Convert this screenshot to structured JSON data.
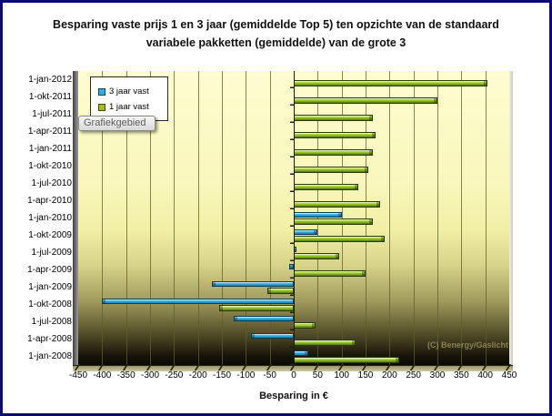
{
  "title": "Besparing vaste prijs 1 en 3 jaar (gemiddelde Top 5) ten opzichte van de standaard variabele pakketten (gemiddelde) van de grote 3",
  "tooltip": {
    "label": "Grafiekgebied"
  },
  "copyright": "(C) Benergy/Gaslicht",
  "colors": {
    "series_blue": "#2EB0E5",
    "series_green": "#9FCA27",
    "window_border": "#0C0C70",
    "plot_top": "#FDFDD0",
    "plot_bottom": "#0B0903"
  },
  "chart_data": {
    "type": "bar",
    "orientation": "horizontal",
    "title": "Besparing vaste prijs 1 en 3 jaar (gemiddelde Top 5) ten opzichte van de standaard variabele pakketten (gemiddelde) van de grote 3",
    "xlabel": "Besparing in €",
    "ylabel": "",
    "xlim": [
      -450,
      450
    ],
    "x_ticks": [
      -450,
      -400,
      -350,
      -300,
      -250,
      -200,
      -150,
      -100,
      -50,
      0,
      50,
      100,
      150,
      200,
      250,
      300,
      350,
      400,
      450
    ],
    "grid": "vertical gridlines every 50",
    "legend_position": "top-left inside plot",
    "categories": [
      "1-jan-2012",
      "1-okt-2011",
      "1-jul-2011",
      "1-apr-2011",
      "1-jan-2011",
      "1-okt-2010",
      "1-jul-2010",
      "1-apr-2010",
      "1-jan-2010",
      "1-okt-2009",
      "1-jul-2009",
      "1-apr-2009",
      "1-jan-2009",
      "1-okt-2008",
      "1-jul-2008",
      "1-apr-2008",
      "1-jan-2008"
    ],
    "series": [
      {
        "name": "3 jaar vast",
        "color": "#2EB0E5",
        "values": [
          null,
          null,
          null,
          null,
          null,
          null,
          null,
          null,
          100,
          50,
          5,
          -10,
          -170,
          -400,
          -125,
          -90,
          30
        ]
      },
      {
        "name": "1 jaar vast",
        "color": "#9FCA27",
        "values": [
          405,
          300,
          165,
          170,
          165,
          155,
          135,
          180,
          165,
          190,
          95,
          150,
          -55,
          -155,
          45,
          130,
          220
        ]
      }
    ]
  }
}
